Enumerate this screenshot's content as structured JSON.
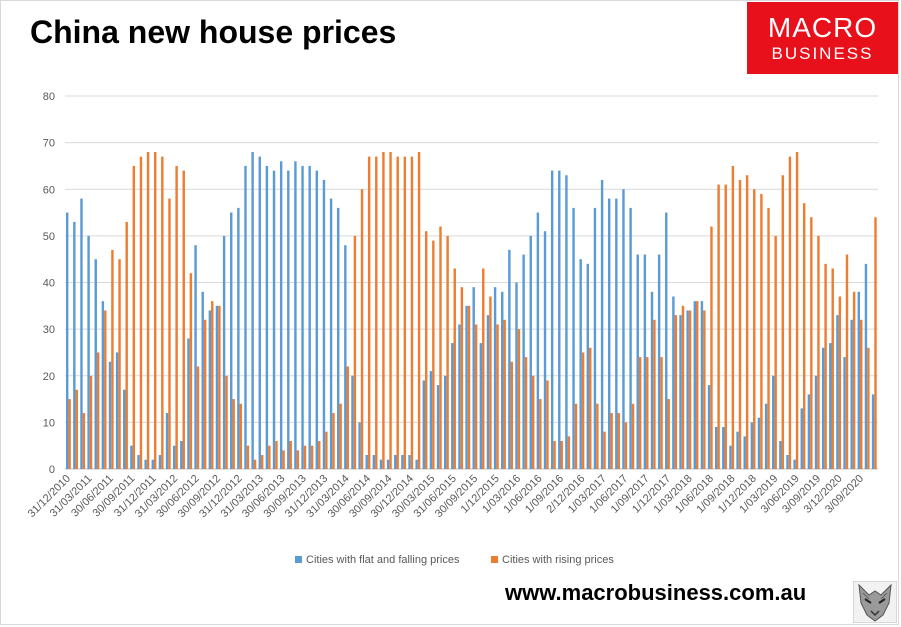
{
  "header": {
    "title": "China new house prices",
    "logo_line1": "MACRO",
    "logo_line2": "BUSINESS"
  },
  "footer": {
    "website": "www.macrobusiness.com.au"
  },
  "colors": {
    "flat_falling": "#5b9bd5",
    "rising": "#ed7d31",
    "logo_red": "#e8101b",
    "gridline": "#d9d9d9",
    "axis_text": "#595959"
  },
  "chart_data": {
    "type": "bar",
    "title": "China new house prices",
    "xlabel": "",
    "ylabel": "",
    "ylim": [
      0,
      80
    ],
    "yticks": [
      0,
      10,
      20,
      30,
      40,
      50,
      60,
      70,
      80
    ],
    "grid": true,
    "legend_position": "bottom",
    "x_tick_labels": [
      "31/12/2010",
      "31/03/2011",
      "30/06/2011",
      "30/09/2011",
      "31/12/2011",
      "31/03/2012",
      "30/06/2012",
      "30/09/2012",
      "31/12/2012",
      "31/03/2013",
      "30/06/2013",
      "30/09/2013",
      "31/12/2013",
      "31/03/2014",
      "30/06/2014",
      "30/09/2014",
      "30/12/2014",
      "30/03/2015",
      "31/06/2015",
      "30/09/2015",
      "1/12/2015",
      "1/03/2016",
      "1/06/2016",
      "1/09/2016",
      "2/12/2016",
      "1/03/2017",
      "1/06/2017",
      "1/09/2017",
      "1/12/2017",
      "1/03/2018",
      "1/06/2018",
      "1/09/2018",
      "1/12/2018",
      "1/03/2019",
      "3/06/2019",
      "3/09/2019",
      "3/12/2020",
      "3/09/2020"
    ],
    "series": [
      {
        "name": "Cities with flat and falling prices",
        "color": "#5b9bd5",
        "values": [
          55,
          53,
          58,
          50,
          45,
          36,
          23,
          25,
          17,
          5,
          3,
          2,
          2,
          3,
          12,
          5,
          6,
          28,
          48,
          38,
          34,
          35,
          50,
          55,
          56,
          65,
          68,
          67,
          65,
          64,
          66,
          64,
          66,
          65,
          65,
          64,
          62,
          58,
          56,
          48,
          20,
          10,
          3,
          3,
          2,
          2,
          3,
          3,
          3,
          2,
          19,
          21,
          18,
          20,
          27,
          31,
          35,
          39,
          27,
          33,
          39,
          38,
          47,
          40,
          46,
          50,
          55,
          51,
          64,
          64,
          63,
          56,
          45,
          44,
          56,
          62,
          58,
          58,
          60,
          56,
          46,
          46,
          38,
          46,
          55,
          37,
          33,
          34,
          36,
          36,
          18,
          9,
          9,
          5,
          8,
          7,
          10,
          11,
          14,
          20,
          6,
          3,
          2,
          13,
          16,
          20,
          26,
          27,
          33,
          24,
          32,
          38,
          44,
          16
        ]
      },
      {
        "name": "Cities with rising prices",
        "color": "#ed7d31",
        "values": [
          15,
          17,
          12,
          20,
          25,
          34,
          47,
          45,
          53,
          65,
          67,
          68,
          68,
          67,
          58,
          65,
          64,
          42,
          22,
          32,
          36,
          35,
          20,
          15,
          14,
          5,
          2,
          3,
          5,
          6,
          4,
          6,
          4,
          5,
          5,
          6,
          8,
          12,
          14,
          22,
          50,
          60,
          67,
          67,
          68,
          68,
          67,
          67,
          67,
          68,
          51,
          49,
          52,
          50,
          43,
          39,
          35,
          31,
          43,
          37,
          31,
          32,
          23,
          30,
          24,
          20,
          15,
          19,
          6,
          6,
          7,
          14,
          25,
          26,
          14,
          8,
          12,
          12,
          10,
          14,
          24,
          24,
          32,
          24,
          15,
          33,
          35,
          34,
          36,
          34,
          52,
          61,
          61,
          65,
          62,
          63,
          60,
          59,
          56,
          50,
          63,
          67,
          68,
          57,
          54,
          50,
          44,
          43,
          37,
          46,
          38,
          32,
          26,
          54
        ]
      }
    ]
  }
}
